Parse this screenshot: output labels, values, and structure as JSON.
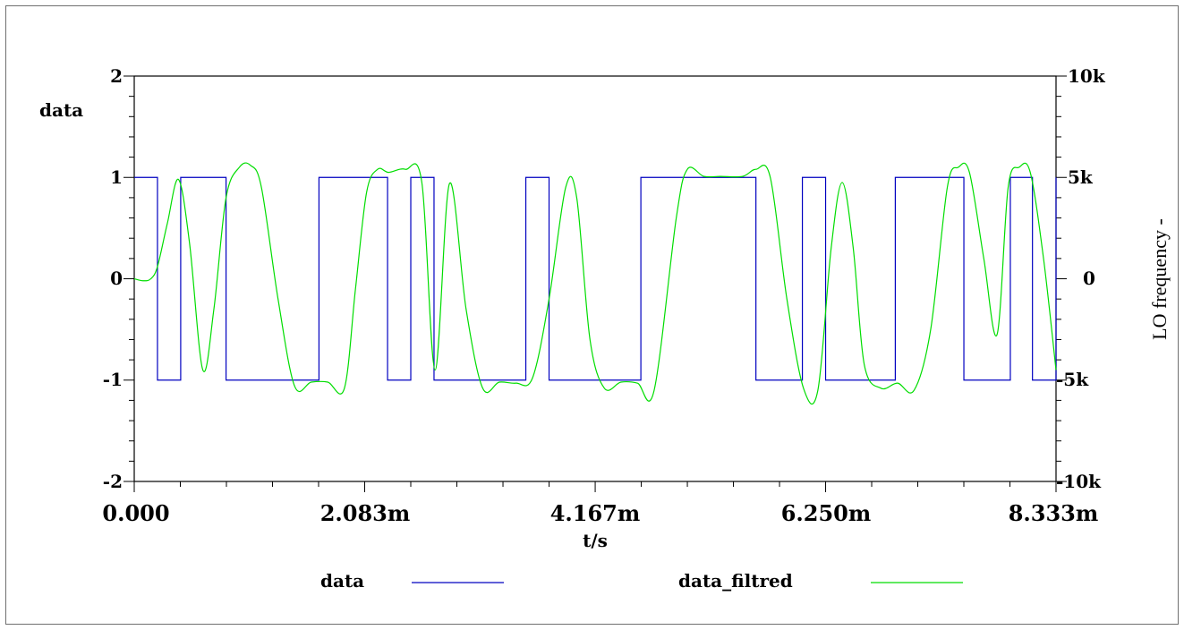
{
  "chart_data": {
    "type": "line",
    "xlabel": "t/s",
    "ylabel_left": "data",
    "ylabel_right": "LO frequency -",
    "x_range": [
      0,
      8.333
    ],
    "x_unit": "ms",
    "ylim_left": [
      -2,
      2
    ],
    "ylim_right": [
      -10000,
      10000
    ],
    "x_tick_labels": [
      "0.000",
      "2.083m",
      "4.167m",
      "6.250m",
      "8.333m"
    ],
    "x_tick_values": [
      0,
      2.083,
      4.167,
      6.25,
      8.333
    ],
    "y_left_tick_labels": [
      "2",
      "1",
      "0",
      "-1",
      "-2"
    ],
    "y_left_tick_values": [
      2,
      1,
      0,
      -1,
      -2
    ],
    "y_right_tick_labels": [
      "10k",
      "5k",
      "0",
      "-5k",
      "-10k"
    ],
    "y_right_tick_values": [
      10000,
      5000,
      0,
      -5000,
      -10000
    ],
    "grid": false,
    "legend_placement": "bottom",
    "series": [
      {
        "name": "data",
        "color": "#0000c0",
        "step": true,
        "x": [
          0,
          0.21,
          0.42,
          0.83,
          1.67,
          2.29,
          2.5,
          2.71,
          3.54,
          3.75,
          4.58,
          5.62,
          6.04,
          6.25,
          6.88,
          7.29,
          7.5,
          7.92,
          8.12,
          8.333
        ],
        "values": [
          1,
          -1,
          1,
          -1,
          1,
          -1,
          1,
          -1,
          1,
          -1,
          1,
          -1,
          1,
          -1,
          1,
          1,
          -1,
          1,
          -1,
          1
        ]
      },
      {
        "name": "data_filtred",
        "color": "#00dd00",
        "x": [
          0,
          0.08,
          0.15,
          0.21,
          0.3,
          0.4,
          0.5,
          0.62,
          0.72,
          0.83,
          0.95,
          1.05,
          1.15,
          1.3,
          1.45,
          1.6,
          1.75,
          1.9,
          2.0,
          2.1,
          2.2,
          2.3,
          2.45,
          2.6,
          2.72,
          2.85,
          3.0,
          3.15,
          3.3,
          3.45,
          3.6,
          3.75,
          3.9,
          4.0,
          4.12,
          4.25,
          4.4,
          4.55,
          4.7,
          4.9,
          5.0,
          5.15,
          5.3,
          5.5,
          5.62,
          5.75,
          5.9,
          6.05,
          6.18,
          6.3,
          6.4,
          6.5,
          6.6,
          6.75,
          6.9,
          7.05,
          7.2,
          7.35,
          7.45,
          7.55,
          7.68,
          7.8,
          7.9,
          8.0,
          8.1,
          8.22,
          8.333
        ],
        "values": [
          0.0,
          -0.02,
          0.0,
          0.12,
          0.55,
          0.98,
          0.35,
          -0.9,
          -0.3,
          0.8,
          1.1,
          1.12,
          0.9,
          -0.2,
          -1.06,
          -1.02,
          -1.02,
          -1.08,
          -0.1,
          0.85,
          1.08,
          1.05,
          1.08,
          0.95,
          -0.9,
          0.94,
          -0.3,
          -1.08,
          -1.02,
          -1.03,
          -0.98,
          -0.2,
          0.9,
          0.8,
          -0.6,
          -1.08,
          -1.02,
          -1.03,
          -1.1,
          0.6,
          1.08,
          1.01,
          1.01,
          1.01,
          1.08,
          1.0,
          -0.2,
          -1.08,
          -1.1,
          0.3,
          0.95,
          0.3,
          -0.85,
          -1.08,
          -1.03,
          -1.1,
          -0.5,
          0.9,
          1.1,
          1.05,
          0.2,
          -0.55,
          0.9,
          1.1,
          1.05,
          0.2,
          -0.9
        ]
      }
    ]
  }
}
